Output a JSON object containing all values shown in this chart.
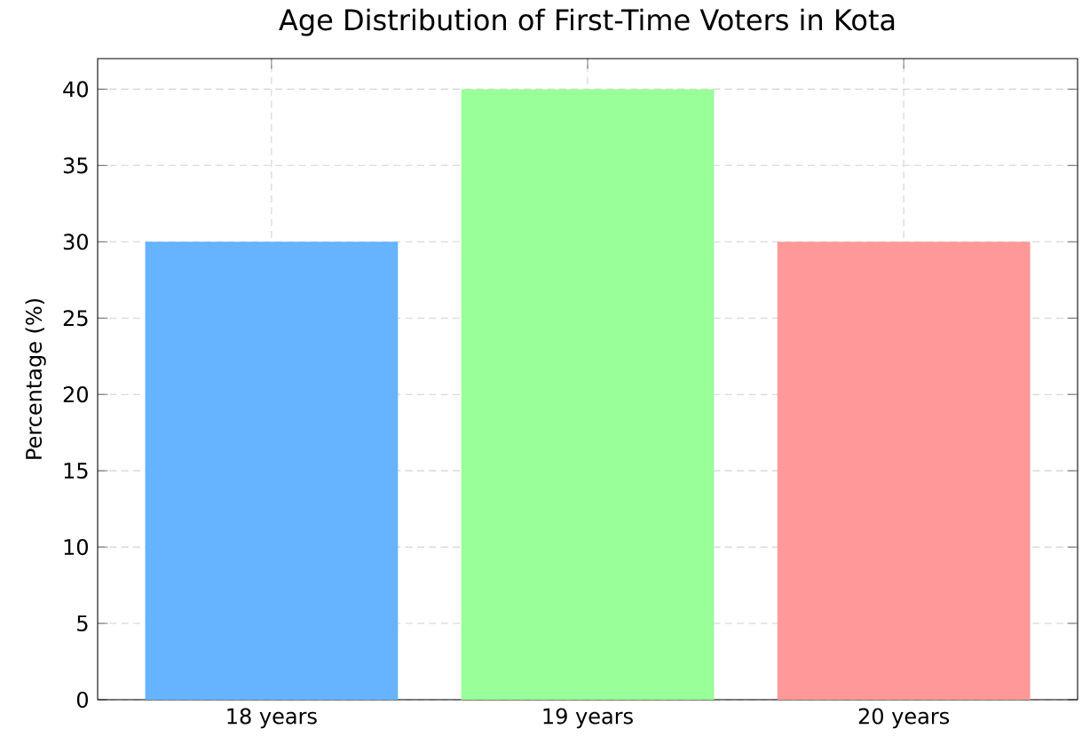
{
  "chart_data": {
    "type": "bar",
    "title": "Age Distribution of First-Time Voters in Kota",
    "xlabel": null,
    "ylabel": "Percentage (%)",
    "categories": [
      "18 years",
      "19 years",
      "20 years"
    ],
    "values": [
      30,
      40,
      30
    ],
    "colors": [
      "#66b3ff",
      "#99ff99",
      "#ff9999"
    ],
    "ylim": [
      0,
      42
    ],
    "yticks": [
      0,
      5,
      10,
      15,
      20,
      25,
      30,
      35,
      40
    ],
    "grid": true
  }
}
